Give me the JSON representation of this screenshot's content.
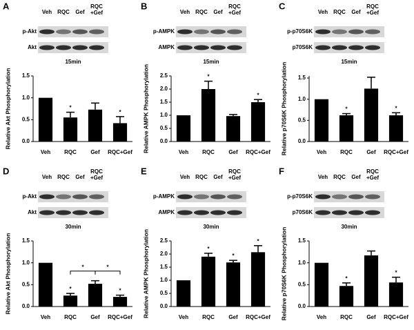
{
  "chart_data": [
    {
      "type": "bar",
      "panel": "A",
      "blot_rows": [
        "p-Akt",
        "Akt"
      ],
      "lanes": [
        "Veh",
        "RQC",
        "Gef",
        [
          "RQC",
          "+Gef"
        ]
      ],
      "time": "15min",
      "y_label": "Relative Akt Phosphorylation",
      "categories": [
        "Veh",
        "RQC",
        "Gef",
        "RQC+Gef"
      ],
      "values": [
        1.0,
        0.55,
        0.73,
        0.42
      ],
      "errors": [
        0,
        0.12,
        0.15,
        0.15
      ],
      "significance": [
        null,
        "*",
        null,
        "*"
      ],
      "color": "#000000",
      "ylim": [
        0,
        1.5
      ],
      "yticks": [
        {
          "value": 0,
          "label": "0.0"
        },
        0.5,
        {
          "value": 1,
          "label": "1.0"
        },
        1.5
      ]
    },
    {
      "type": "bar",
      "panel": "B",
      "blot_rows": [
        "p-AMPK",
        "AMPK"
      ],
      "lanes": [
        "Veh",
        "RQC",
        "Gef",
        [
          "RQC",
          "+Gef"
        ]
      ],
      "time": "15min",
      "y_label": "Relative AMPK Phosphorylation",
      "categories": [
        "Veh",
        "RQC",
        "Gef",
        "RQC+Gef"
      ],
      "values": [
        1.0,
        2.0,
        0.97,
        1.5
      ],
      "errors": [
        0,
        0.3,
        0.06,
        0.1
      ],
      "significance": [
        null,
        "*",
        null,
        "*"
      ],
      "color": "#000000",
      "ylim": [
        0,
        2.5
      ],
      "yticks": [
        {
          "value": 0,
          "label": "0.0"
        },
        0.5,
        {
          "value": 1,
          "label": "1.0"
        },
        1.5,
        {
          "value": 2,
          "label": "2.0"
        },
        2.5
      ]
    },
    {
      "type": "bar",
      "panel": "C",
      "blot_rows": [
        "p-p70S6K",
        "p70S6K"
      ],
      "lanes": [
        "Veh",
        "RQC",
        "Gef",
        [
          "RQC",
          "+Gef"
        ]
      ],
      "time": "15min",
      "y_label": "Relative p70S6K Phosphorylation",
      "categories": [
        "Veh",
        "RQC",
        "Gef",
        "RQC+Gef"
      ],
      "values": [
        1.0,
        0.62,
        1.25,
        0.62
      ],
      "errors": [
        0,
        0.04,
        0.27,
        0.06
      ],
      "significance": [
        null,
        "*",
        null,
        "*"
      ],
      "color": "#000000",
      "ylim": [
        0,
        1.55
      ],
      "yticks": [
        {
          "value": 0,
          "label": "0.0"
        },
        0.5,
        {
          "value": 1,
          "label": "1.0"
        },
        1.5
      ]
    },
    {
      "type": "bar",
      "panel": "D",
      "blot_rows": [
        "p-Akt",
        "Akt"
      ],
      "lanes": [
        "Veh",
        "RQC",
        "Gef",
        [
          "RQC",
          "+Gef"
        ]
      ],
      "time": "30min",
      "y_label": "Relative Akt Phosphorylation",
      "categories": [
        "Veh",
        "RQC",
        "Gef",
        "RQC+Gef"
      ],
      "values": [
        1.0,
        0.25,
        0.52,
        0.22
      ],
      "errors": [
        0,
        0.05,
        0.07,
        0.04
      ],
      "significance": [
        null,
        "*",
        null,
        "*"
      ],
      "comparisons": [
        {
          "from": "RQC",
          "to": "Gef",
          "label": "*"
        },
        {
          "from": "Gef",
          "to": "RQC+Gef",
          "label": "*"
        }
      ],
      "color": "#000000",
      "ylim": [
        0,
        1.5
      ],
      "yticks": [
        {
          "value": 0,
          "label": "0.0"
        },
        0.5,
        {
          "value": 1,
          "label": "1.0"
        },
        1.5
      ]
    },
    {
      "type": "bar",
      "panel": "E",
      "blot_rows": [
        "p-AMPK",
        "AMPK"
      ],
      "lanes": [
        "Veh",
        "RQC",
        "Gef",
        [
          "RQC",
          "+Gef"
        ]
      ],
      "time": "30min",
      "y_label": "Relative AMPK Phosphorylation",
      "categories": [
        "Veh",
        "RQC",
        "Gef",
        "RQC+Gef"
      ],
      "values": [
        1.0,
        1.9,
        1.68,
        2.07
      ],
      "errors": [
        0,
        0.13,
        0.08,
        0.25
      ],
      "significance": [
        null,
        "*",
        "*",
        "*"
      ],
      "color": "#000000",
      "ylim": [
        0,
        2.5
      ],
      "yticks": [
        {
          "value": 0,
          "label": "0.0"
        },
        0.5,
        {
          "value": 1,
          "label": "1.0"
        },
        1.5,
        {
          "value": 2,
          "label": "2.0"
        },
        2.5
      ]
    },
    {
      "type": "bar",
      "panel": "F",
      "blot_rows": [
        "p-p70S6K",
        "p70S6K"
      ],
      "lanes": [
        "Veh",
        "RQC",
        "Gef",
        [
          "RQC",
          "+Gef"
        ]
      ],
      "time": "30min",
      "y_label": "Relative p70S6K Phosphorylation",
      "categories": [
        "Veh",
        "RQC",
        "Gef",
        "RQC+Gef"
      ],
      "values": [
        1.0,
        0.47,
        1.17,
        0.55
      ],
      "errors": [
        0,
        0.07,
        0.1,
        0.12
      ],
      "significance": [
        null,
        "*",
        null,
        "*"
      ],
      "color": "#000000",
      "ylim": [
        0,
        1.5
      ],
      "yticks": [
        {
          "value": 0,
          "label": "0.0"
        },
        0.5,
        {
          "value": 1,
          "label": "1.0"
        },
        1.5
      ]
    }
  ]
}
